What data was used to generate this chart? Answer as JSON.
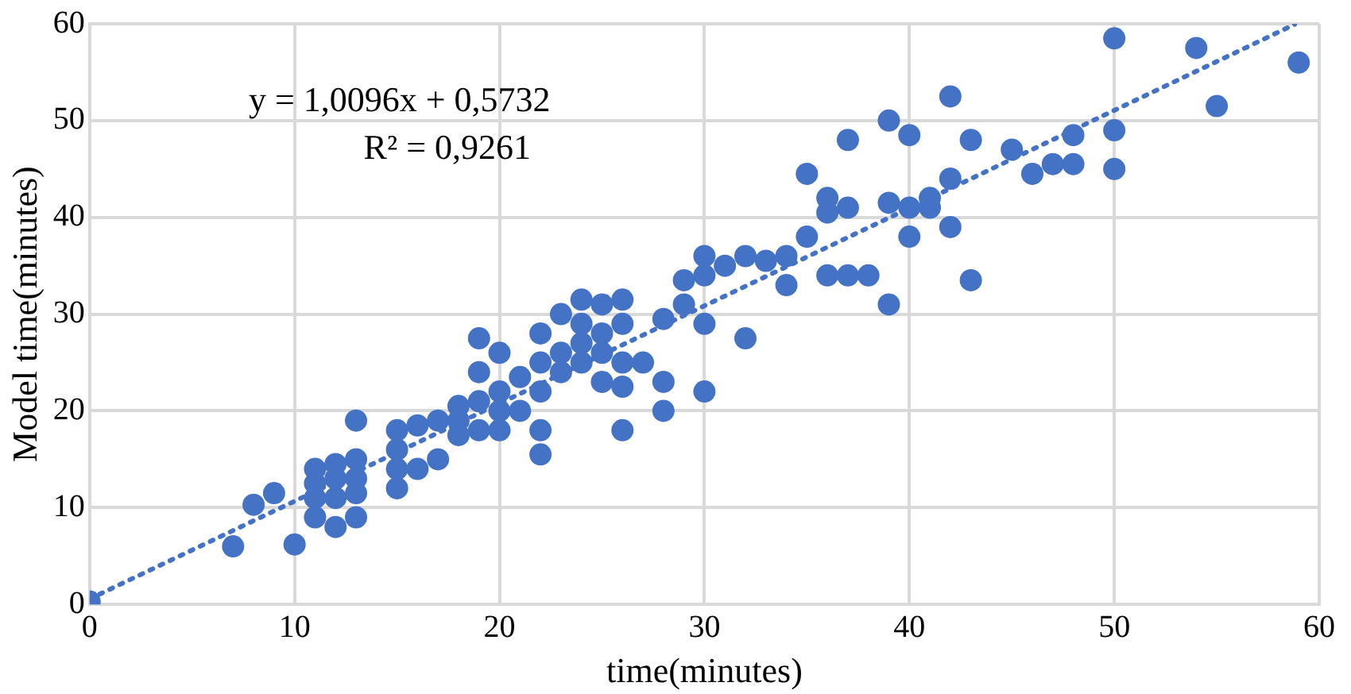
{
  "chart_data": {
    "type": "scatter",
    "xlabel": "time(minutes)",
    "ylabel": "Model time(minutes)",
    "annotations": [
      "y = 1,0096x + 0,5732",
      "R² = 0,9261"
    ],
    "xlim": [
      0,
      60
    ],
    "xticks": [
      0,
      10,
      20,
      30,
      40,
      50,
      60
    ],
    "ylim": [
      0,
      60
    ],
    "yticks": [
      0,
      10,
      20,
      30,
      40,
      50,
      60
    ],
    "grid": true,
    "legend": false,
    "marker": "circle",
    "series": [
      {
        "color": "#4472c4",
        "x": [
          0,
          7,
          8,
          9,
          10,
          11,
          11,
          11,
          11,
          12,
          12,
          12,
          12,
          13,
          13,
          13,
          13,
          13,
          15,
          15,
          15,
          15,
          16,
          16,
          17,
          17,
          18,
          18,
          18,
          19,
          19,
          19,
          19,
          20,
          20,
          20,
          20,
          21,
          21,
          22,
          22,
          22,
          22,
          22,
          23,
          23,
          23,
          24,
          24,
          24,
          24,
          25,
          25,
          25,
          25,
          26,
          26,
          26,
          26,
          26,
          27,
          28,
          28,
          28,
          29,
          29,
          30,
          30,
          30,
          30,
          31,
          32,
          32,
          33,
          34,
          34,
          35,
          35,
          36,
          36,
          36,
          37,
          37,
          37,
          38,
          39,
          39,
          39,
          40,
          40,
          40,
          41,
          41,
          42,
          42,
          42,
          43,
          43,
          45,
          46,
          47,
          48,
          48,
          50,
          50,
          50,
          54,
          55,
          59
        ],
        "values": [
          0.3,
          6,
          10.3,
          11.5,
          6.2,
          14,
          12.5,
          11,
          9,
          14.5,
          13,
          11,
          8,
          19,
          15,
          13,
          11.5,
          9,
          18,
          16,
          14,
          12,
          18.5,
          14,
          19,
          15,
          20.5,
          19,
          17.5,
          27.5,
          24,
          21,
          18,
          26,
          22,
          20,
          18,
          23.5,
          20,
          28,
          25,
          22,
          18,
          15.5,
          30,
          26,
          24,
          31.5,
          29,
          27,
          25,
          31,
          28,
          26,
          23,
          31.5,
          29,
          25,
          22.5,
          18,
          25,
          29.5,
          23,
          20,
          33.5,
          31,
          36,
          34,
          29,
          22,
          35,
          36,
          27.5,
          35.5,
          36,
          33,
          44.5,
          38,
          42,
          40.5,
          34,
          48,
          41,
          34,
          34,
          50,
          41.5,
          31,
          48.5,
          41,
          38,
          41,
          42,
          52.5,
          44,
          39,
          48,
          33.5,
          47,
          44.5,
          45.5,
          48.5,
          45.5,
          58.5,
          49,
          45,
          57.5,
          51.5,
          56
        ]
      },
      {
        "type": "line",
        "line_style": "dotted",
        "marker": "none",
        "color": "#4472c4",
        "x": [
          0,
          58.8
        ],
        "values": [
          0.57,
          59.94
        ]
      }
    ]
  }
}
